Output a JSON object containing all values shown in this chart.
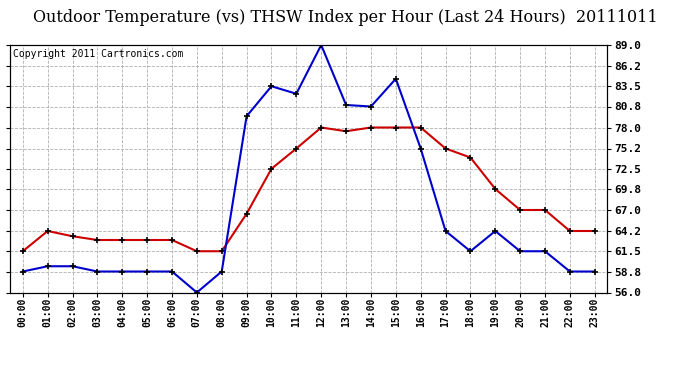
{
  "title": "Outdoor Temperature (vs) THSW Index per Hour (Last 24 Hours)  20111011",
  "copyright": "Copyright 2011 Cartronics.com",
  "hours": [
    "00:00",
    "01:00",
    "02:00",
    "03:00",
    "04:00",
    "05:00",
    "06:00",
    "07:00",
    "08:00",
    "09:00",
    "10:00",
    "11:00",
    "12:00",
    "13:00",
    "14:00",
    "15:00",
    "16:00",
    "17:00",
    "18:00",
    "19:00",
    "20:00",
    "21:00",
    "22:00",
    "23:00"
  ],
  "temp_red": [
    61.5,
    64.2,
    63.5,
    63.0,
    63.0,
    63.0,
    63.0,
    61.5,
    61.5,
    66.5,
    72.5,
    75.2,
    78.0,
    77.5,
    78.0,
    78.0,
    78.0,
    75.2,
    74.0,
    69.8,
    67.0,
    67.0,
    64.2,
    64.2
  ],
  "thsw_blue": [
    58.8,
    59.5,
    59.5,
    58.8,
    58.8,
    58.8,
    58.8,
    56.0,
    58.8,
    79.5,
    83.5,
    82.5,
    89.0,
    81.0,
    80.8,
    84.5,
    75.2,
    64.2,
    61.5,
    64.2,
    61.5,
    61.5,
    58.8,
    58.8
  ],
  "ylim": [
    56.0,
    89.0
  ],
  "yticks": [
    56.0,
    58.8,
    61.5,
    64.2,
    67.0,
    69.8,
    72.5,
    75.2,
    78.0,
    80.8,
    83.5,
    86.2,
    89.0
  ],
  "ytick_labels": [
    "56.0",
    "58.8",
    "61.5",
    "64.2",
    "67.0",
    "69.8",
    "72.5",
    "75.2",
    "78.0",
    "80.8",
    "83.5",
    "86.2",
    "89.0"
  ],
  "red_color": "#cc0000",
  "blue_color": "#0000cc",
  "bg_color": "#ffffff",
  "grid_color": "#b0b0b0",
  "title_fontsize": 11.5,
  "copyright_fontsize": 7
}
